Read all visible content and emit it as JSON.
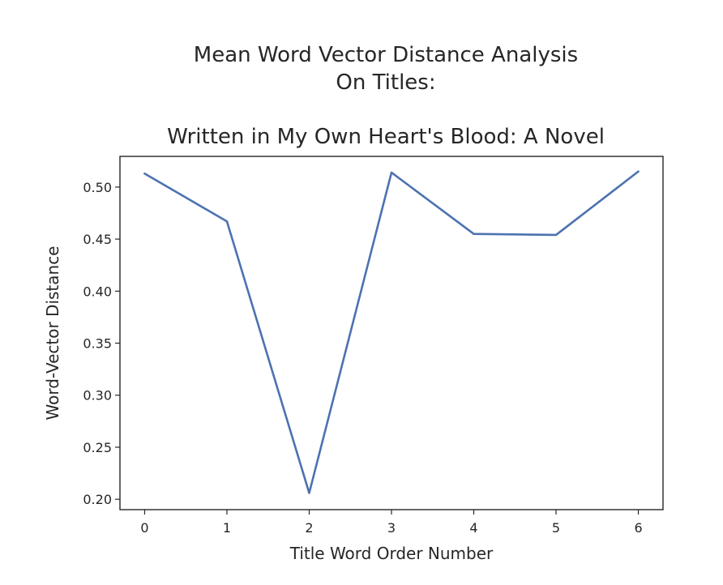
{
  "chart_data": {
    "type": "line",
    "suptitle_lines": [
      "Mean Word Vector Distance Analysis",
      "On Titles:"
    ],
    "title": "Written in My Own Heart's Blood: A Novel",
    "xlabel": "Title Word Order Number",
    "ylabel": "Word-Vector Distance",
    "x": [
      0,
      1,
      2,
      3,
      4,
      5,
      6
    ],
    "series": [
      {
        "values": [
          0.513,
          0.467,
          0.206,
          0.514,
          0.455,
          0.454,
          0.515
        ],
        "color": "#4c72b0"
      }
    ],
    "xticks": [
      0,
      1,
      2,
      3,
      4,
      5,
      6
    ],
    "xtick_labels": [
      "0",
      "1",
      "2",
      "3",
      "4",
      "5",
      "6"
    ],
    "yticks": [
      0.2,
      0.25,
      0.3,
      0.35,
      0.4,
      0.45,
      0.5
    ],
    "ytick_labels": [
      "0.20",
      "0.25",
      "0.30",
      "0.35",
      "0.40",
      "0.45",
      "0.50"
    ],
    "xlim": [
      -0.3,
      6.3
    ],
    "ylim": [
      0.19,
      0.5295
    ],
    "grid": false,
    "legend": false
  }
}
